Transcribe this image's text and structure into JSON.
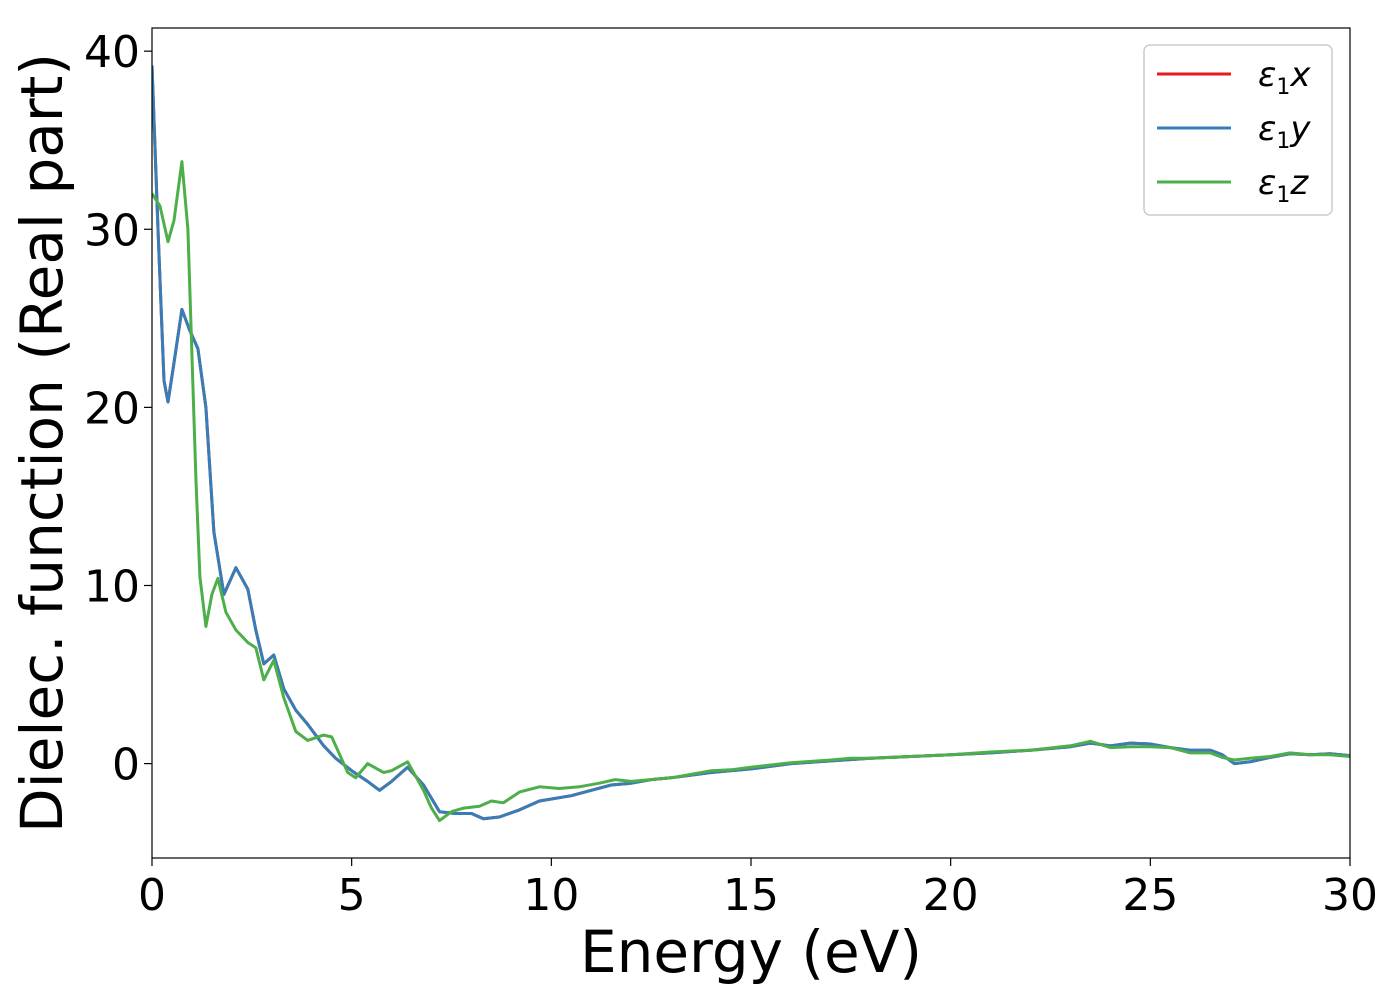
{
  "chart_data": {
    "type": "line",
    "title": "",
    "xlabel": "Energy (eV)",
    "ylabel": "Dielec. function (Real part)",
    "xlim": [
      0,
      30
    ],
    "ylim": [
      -5.3,
      41.3
    ],
    "xticks": [
      0,
      5,
      10,
      15,
      20,
      25,
      30
    ],
    "yticks": [
      0,
      10,
      20,
      30,
      40
    ],
    "grid": false,
    "legend_position": "top-right",
    "series": [
      {
        "name": "ε1x",
        "legend_base": "ε",
        "legend_sub": "1",
        "legend_var": "x",
        "color": "#e41a1c",
        "points": [
          [
            0,
            39.2
          ],
          [
            0.15,
            30
          ],
          [
            0.3,
            21.5
          ],
          [
            0.4,
            20.3
          ],
          [
            0.55,
            22.5
          ],
          [
            0.75,
            25.5
          ],
          [
            0.95,
            24.3
          ],
          [
            1.15,
            23.3
          ],
          [
            1.35,
            20
          ],
          [
            1.55,
            13
          ],
          [
            1.8,
            9.5
          ],
          [
            2.0,
            10.5
          ],
          [
            2.1,
            11
          ],
          [
            2.4,
            9.8
          ],
          [
            2.6,
            7.5
          ],
          [
            2.8,
            5.6
          ],
          [
            3.05,
            6.1
          ],
          [
            3.3,
            4.2
          ],
          [
            3.6,
            3.0
          ],
          [
            3.9,
            2.2
          ],
          [
            4.3,
            1.0
          ],
          [
            4.6,
            0.3
          ],
          [
            5.0,
            -0.4
          ],
          [
            5.4,
            -1.0
          ],
          [
            5.7,
            -1.5
          ],
          [
            6.0,
            -1.0
          ],
          [
            6.4,
            -0.2
          ],
          [
            6.8,
            -1.2
          ],
          [
            7.2,
            -2.7
          ],
          [
            7.6,
            -2.8
          ],
          [
            8.0,
            -2.8
          ],
          [
            8.3,
            -3.1
          ],
          [
            8.7,
            -3.0
          ],
          [
            9.2,
            -2.6
          ],
          [
            9.7,
            -2.1
          ],
          [
            10.5,
            -1.8
          ],
          [
            11.0,
            -1.5
          ],
          [
            11.5,
            -1.2
          ],
          [
            12.0,
            -1.1
          ],
          [
            12.5,
            -0.9
          ],
          [
            13.0,
            -0.8
          ],
          [
            14.0,
            -0.5
          ],
          [
            15.0,
            -0.3
          ],
          [
            16.0,
            0.0
          ],
          [
            17.0,
            0.15
          ],
          [
            18.0,
            0.3
          ],
          [
            19.0,
            0.4
          ],
          [
            20.0,
            0.5
          ],
          [
            21.0,
            0.6
          ],
          [
            22.0,
            0.75
          ],
          [
            23.0,
            0.95
          ],
          [
            23.5,
            1.15
          ],
          [
            24.0,
            1.0
          ],
          [
            24.5,
            1.15
          ],
          [
            25.0,
            1.1
          ],
          [
            25.5,
            0.9
          ],
          [
            26.0,
            0.75
          ],
          [
            26.5,
            0.75
          ],
          [
            26.8,
            0.5
          ],
          [
            27.1,
            0.0
          ],
          [
            27.5,
            0.1
          ],
          [
            28.0,
            0.35
          ],
          [
            28.5,
            0.55
          ],
          [
            29.0,
            0.5
          ],
          [
            29.5,
            0.55
          ],
          [
            30.0,
            0.45
          ]
        ]
      },
      {
        "name": "ε1y",
        "legend_base": "ε",
        "legend_sub": "1",
        "legend_var": "y",
        "color": "#377eb8",
        "points": [
          [
            0,
            39.2
          ],
          [
            0.15,
            30
          ],
          [
            0.3,
            21.5
          ],
          [
            0.4,
            20.3
          ],
          [
            0.55,
            22.5
          ],
          [
            0.75,
            25.5
          ],
          [
            0.95,
            24.3
          ],
          [
            1.15,
            23.3
          ],
          [
            1.35,
            20
          ],
          [
            1.55,
            13
          ],
          [
            1.8,
            9.5
          ],
          [
            2.0,
            10.5
          ],
          [
            2.1,
            11
          ],
          [
            2.4,
            9.8
          ],
          [
            2.6,
            7.5
          ],
          [
            2.8,
            5.6
          ],
          [
            3.05,
            6.1
          ],
          [
            3.3,
            4.2
          ],
          [
            3.6,
            3.0
          ],
          [
            3.9,
            2.2
          ],
          [
            4.3,
            1.0
          ],
          [
            4.6,
            0.3
          ],
          [
            5.0,
            -0.4
          ],
          [
            5.4,
            -1.0
          ],
          [
            5.7,
            -1.5
          ],
          [
            6.0,
            -1.0
          ],
          [
            6.4,
            -0.2
          ],
          [
            6.8,
            -1.2
          ],
          [
            7.2,
            -2.7
          ],
          [
            7.6,
            -2.8
          ],
          [
            8.0,
            -2.8
          ],
          [
            8.3,
            -3.1
          ],
          [
            8.7,
            -3.0
          ],
          [
            9.2,
            -2.6
          ],
          [
            9.7,
            -2.1
          ],
          [
            10.5,
            -1.8
          ],
          [
            11.0,
            -1.5
          ],
          [
            11.5,
            -1.2
          ],
          [
            12.0,
            -1.1
          ],
          [
            12.5,
            -0.9
          ],
          [
            13.0,
            -0.8
          ],
          [
            14.0,
            -0.5
          ],
          [
            15.0,
            -0.3
          ],
          [
            16.0,
            0.0
          ],
          [
            17.0,
            0.15
          ],
          [
            18.0,
            0.3
          ],
          [
            19.0,
            0.4
          ],
          [
            20.0,
            0.5
          ],
          [
            21.0,
            0.6
          ],
          [
            22.0,
            0.75
          ],
          [
            23.0,
            0.95
          ],
          [
            23.5,
            1.15
          ],
          [
            24.0,
            1.0
          ],
          [
            24.5,
            1.15
          ],
          [
            25.0,
            1.1
          ],
          [
            25.5,
            0.9
          ],
          [
            26.0,
            0.75
          ],
          [
            26.5,
            0.75
          ],
          [
            26.8,
            0.5
          ],
          [
            27.1,
            0.0
          ],
          [
            27.5,
            0.1
          ],
          [
            28.0,
            0.35
          ],
          [
            28.5,
            0.55
          ],
          [
            29.0,
            0.5
          ],
          [
            29.5,
            0.55
          ],
          [
            30.0,
            0.45
          ]
        ]
      },
      {
        "name": "ε1z",
        "legend_base": "ε",
        "legend_sub": "1",
        "legend_var": "z",
        "color": "#4daf4a",
        "points": [
          [
            0,
            32
          ],
          [
            0.2,
            31.3
          ],
          [
            0.4,
            29.3
          ],
          [
            0.55,
            30.5
          ],
          [
            0.75,
            33.8
          ],
          [
            0.9,
            30
          ],
          [
            1.0,
            23
          ],
          [
            1.1,
            16
          ],
          [
            1.2,
            10.5
          ],
          [
            1.35,
            7.7
          ],
          [
            1.5,
            9.5
          ],
          [
            1.65,
            10.4
          ],
          [
            1.85,
            8.5
          ],
          [
            2.1,
            7.5
          ],
          [
            2.4,
            6.8
          ],
          [
            2.6,
            6.5
          ],
          [
            2.8,
            4.7
          ],
          [
            3.05,
            5.8
          ],
          [
            3.3,
            3.7
          ],
          [
            3.6,
            1.8
          ],
          [
            3.9,
            1.3
          ],
          [
            4.3,
            1.6
          ],
          [
            4.5,
            1.5
          ],
          [
            4.9,
            -0.5
          ],
          [
            5.1,
            -0.8
          ],
          [
            5.4,
            0.0
          ],
          [
            5.8,
            -0.5
          ],
          [
            6.0,
            -0.4
          ],
          [
            6.4,
            0.1
          ],
          [
            6.8,
            -1.5
          ],
          [
            7.0,
            -2.5
          ],
          [
            7.2,
            -3.2
          ],
          [
            7.5,
            -2.7
          ],
          [
            7.8,
            -2.5
          ],
          [
            8.2,
            -2.4
          ],
          [
            8.5,
            -2.1
          ],
          [
            8.8,
            -2.2
          ],
          [
            9.2,
            -1.6
          ],
          [
            9.7,
            -1.3
          ],
          [
            10.2,
            -1.4
          ],
          [
            10.7,
            -1.3
          ],
          [
            11.2,
            -1.1
          ],
          [
            11.6,
            -0.9
          ],
          [
            12.0,
            -1.0
          ],
          [
            12.5,
            -0.9
          ],
          [
            13.0,
            -0.8
          ],
          [
            13.5,
            -0.6
          ],
          [
            14.0,
            -0.4
          ],
          [
            14.5,
            -0.35
          ],
          [
            15.0,
            -0.2
          ],
          [
            16.0,
            0.05
          ],
          [
            17.0,
            0.2
          ],
          [
            17.5,
            0.3
          ],
          [
            18.0,
            0.3
          ],
          [
            19.0,
            0.4
          ],
          [
            20.0,
            0.5
          ],
          [
            21.0,
            0.65
          ],
          [
            22.0,
            0.75
          ],
          [
            23.0,
            1.0
          ],
          [
            23.5,
            1.25
          ],
          [
            24.0,
            0.9
          ],
          [
            24.5,
            0.95
          ],
          [
            25.0,
            0.95
          ],
          [
            25.5,
            0.9
          ],
          [
            26.0,
            0.6
          ],
          [
            26.5,
            0.6
          ],
          [
            26.8,
            0.35
          ],
          [
            27.1,
            0.2
          ],
          [
            27.5,
            0.3
          ],
          [
            28.0,
            0.4
          ],
          [
            28.5,
            0.6
          ],
          [
            29.0,
            0.5
          ],
          [
            29.5,
            0.5
          ],
          [
            30.0,
            0.4
          ]
        ]
      }
    ]
  }
}
